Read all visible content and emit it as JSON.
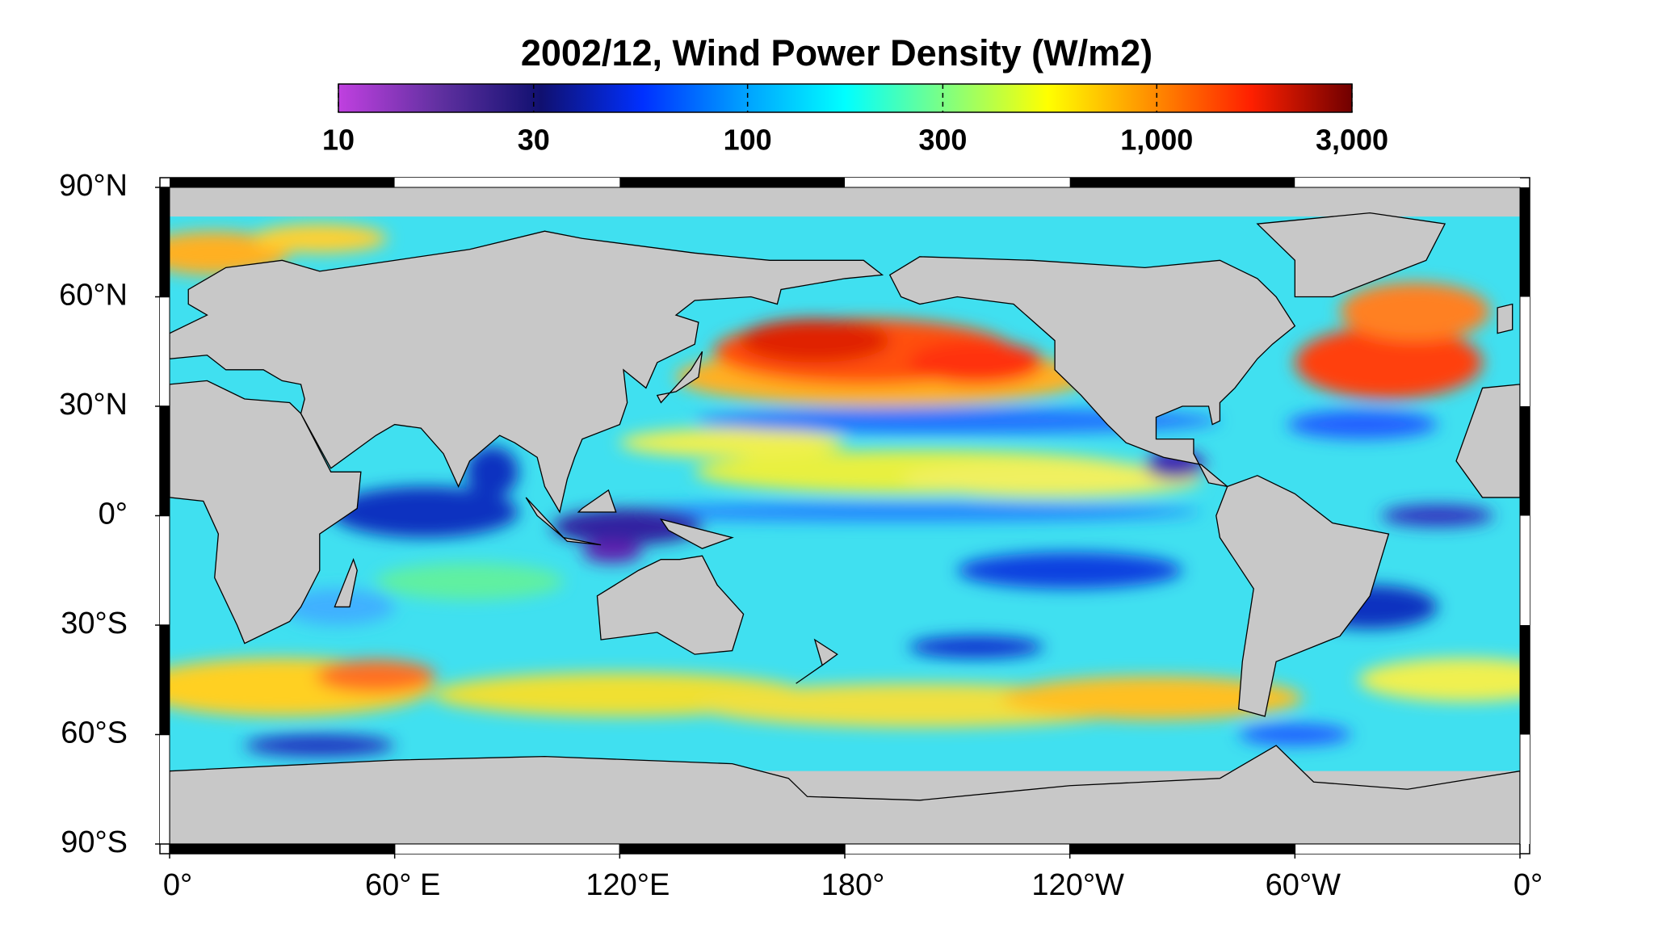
{
  "title": "2002/12, Wind Power Density (W/m2)",
  "colorbar": {
    "scale": "log",
    "lim": [
      10,
      3000
    ],
    "colors": [
      "#c040e0",
      "#6030a0",
      "#101070",
      "#0030ff",
      "#00a0ff",
      "#00ffff",
      "#80ff80",
      "#ffff00",
      "#ff9000",
      "#ff2000",
      "#700000"
    ],
    "ticks": [
      10,
      30,
      100,
      300,
      {
        "value": 1000,
        "label": "1,000"
      },
      {
        "value": 3000,
        "label": "3,000"
      }
    ]
  },
  "map": {
    "lonlim": [
      0,
      360
    ],
    "latlim": [
      -90,
      90
    ],
    "lonticks": [
      {
        "value": 0,
        "label": "0°"
      },
      {
        "value": 60,
        "label": "60° E"
      },
      {
        "value": 120,
        "label": "120°E"
      },
      {
        "value": 180,
        "label": "180°"
      },
      {
        "value": 240,
        "label": "120°W"
      },
      {
        "value": 300,
        "label": "60°W"
      },
      {
        "value": 360,
        "label": "0°"
      }
    ],
    "latticks": [
      {
        "value": 90,
        "label": "90°N"
      },
      {
        "value": 60,
        "label": "60°N"
      },
      {
        "value": 30,
        "label": "30°N"
      },
      {
        "value": 0,
        "label": "0°"
      },
      {
        "value": -30,
        "label": "30°S"
      },
      {
        "value": -60,
        "label": "60°S"
      },
      {
        "value": -90,
        "label": "90°S"
      }
    ]
  }
}
